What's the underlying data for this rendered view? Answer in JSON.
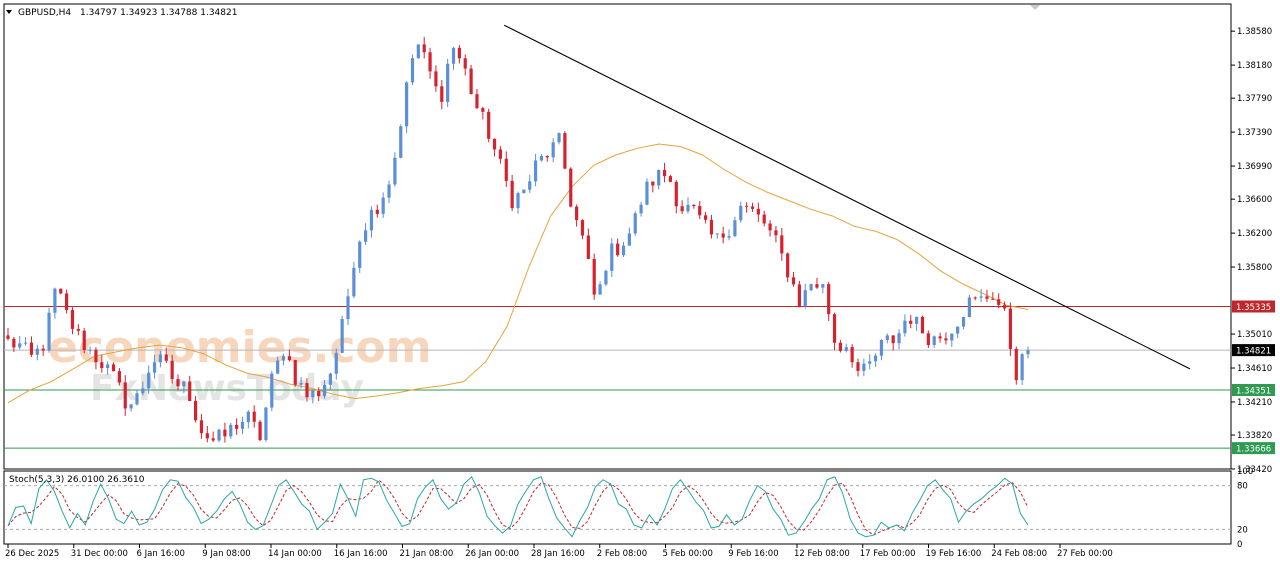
{
  "header": {
    "symbol": "GBPUSD,H4",
    "ohlc": "1.34797 1.34923 1.34788 1.34821"
  },
  "colors": {
    "bull": "#5b8fd6",
    "bear": "#d6222e",
    "ma": "#e8a33a",
    "trendline": "#000000",
    "resistance": "#c0272d",
    "support": "#2e9a52",
    "stoch_main": "#2aa6a8",
    "stoch_signal": "#c0272d",
    "watermark": "#f3c9a8"
  },
  "watermark": {
    "line1": "economies.com",
    "line2": "FxNewsToday"
  },
  "chart_data": [
    {
      "type": "candlestick",
      "title": "GBPUSD,H4",
      "ylim": [
        1.3342,
        1.389
      ],
      "yticks": [
        "1.38580",
        "1.38180",
        "1.37790",
        "1.37390",
        "1.36990",
        "1.36600",
        "1.36200",
        "1.35800",
        "1.35010",
        "1.34610",
        "1.34210",
        "1.33820",
        "1.33420"
      ],
      "xlabels": [
        "26 Dec 2025",
        "31 Dec 00:00",
        "6 Jan 16:00",
        "9 Jan 08:00",
        "14 Jan 00:00",
        "16 Jan 16:00",
        "21 Jan 08:00",
        "26 Jan 00:00",
        "28 Jan 16:00",
        "2 Feb 08:00",
        "5 Feb 00:00",
        "9 Feb 16:00",
        "12 Feb 08:00",
        "17 Feb 00:00",
        "19 Feb 16:00",
        "24 Feb 08:00",
        "27 Feb 00:00"
      ],
      "candles_count": 175,
      "anchor_prices": [
        1.3492,
        1.3487,
        1.3472,
        1.349,
        1.3556,
        1.352,
        1.3495,
        1.3478,
        1.3465,
        1.3445,
        1.3415,
        1.343,
        1.3472,
        1.3466,
        1.3442,
        1.3436,
        1.339,
        1.3375,
        1.338,
        1.3395,
        1.3402,
        1.338,
        1.3448,
        1.3485,
        1.3448,
        1.3427,
        1.3434,
        1.346,
        1.3518,
        1.3605,
        1.3638,
        1.3658,
        1.369,
        1.3775,
        1.3848,
        1.3815,
        1.3775,
        1.3843,
        1.3815,
        1.377,
        1.374,
        1.37,
        1.366,
        1.3668,
        1.37,
        1.3715,
        1.3728,
        1.365,
        1.3608,
        1.3535,
        1.3595,
        1.3605,
        1.3625,
        1.3668,
        1.3687,
        1.369,
        1.365,
        1.3648,
        1.3627,
        1.361,
        1.3625,
        1.3652,
        1.3645,
        1.3632,
        1.3608,
        1.3575,
        1.3538,
        1.3563,
        1.3555,
        1.3485,
        1.349,
        1.345,
        1.3468,
        1.3492,
        1.3495,
        1.3525,
        1.3508,
        1.3495,
        1.35,
        1.3515,
        1.3538,
        1.354,
        1.355,
        1.3525,
        1.3455,
        1.3482
      ],
      "last_price": "1.34821",
      "moving_average": {
        "color": "#e8a33a",
        "values": [
          1.342,
          1.3435,
          1.3445,
          1.346,
          1.3475,
          1.348,
          1.3485,
          1.3488,
          1.3485,
          1.3478,
          1.3465,
          1.3455,
          1.345,
          1.3442,
          1.3437,
          1.343,
          1.3425,
          1.3428,
          1.3432,
          1.3437,
          1.344,
          1.3445,
          1.3468,
          1.351,
          1.358,
          1.364,
          1.3675,
          1.37,
          1.3712,
          1.372,
          1.3725,
          1.3722,
          1.3712,
          1.3695,
          1.368,
          1.3668,
          1.3658,
          1.3648,
          1.364,
          1.3628,
          1.3622,
          1.3612,
          1.3595,
          1.3575,
          1.356,
          1.3548,
          1.3535,
          1.353
        ]
      },
      "trendline": {
        "from": {
          "x": "26 Jan 00:00",
          "y": 1.3865
        },
        "to": {
          "x": "27 Feb 00:00",
          "y": 1.346
        }
      },
      "levels": [
        {
          "name": "resistance",
          "value": "1.35335",
          "color": "#c0272d"
        },
        {
          "name": "current",
          "value": "1.34821",
          "color": "#000000"
        },
        {
          "name": "support-1",
          "value": "1.34351",
          "color": "#2e9a52"
        },
        {
          "name": "support-2",
          "value": "1.33666",
          "color": "#2e9a52"
        }
      ],
      "hidden_tick": "1.35400"
    },
    {
      "type": "line",
      "title": "Stoch(5,3,3) 26.0100 26.3610",
      "ylim": [
        0,
        100
      ],
      "yticks": [
        "100",
        "80",
        "20",
        "0"
      ],
      "levels": [
        80,
        20
      ],
      "series": [
        {
          "name": "main",
          "color": "#2aa6a8",
          "values": [
            25,
            50,
            52,
            28,
            76,
            88,
            72,
            45,
            22,
            42,
            26,
            58,
            82,
            62,
            34,
            28,
            45,
            26,
            30,
            48,
            74,
            88,
            86,
            64,
            50,
            28,
            34,
            45,
            62,
            72,
            55,
            30,
            20,
            25,
            52,
            80,
            88,
            72,
            55,
            45,
            20,
            30,
            42,
            82,
            62,
            38,
            88,
            90,
            85,
            60,
            42,
            24,
            28,
            62,
            78,
            88,
            62,
            48,
            56,
            82,
            92,
            70,
            38,
            25,
            15,
            24,
            55,
            72,
            88,
            92,
            62,
            36,
            22,
            10,
            32,
            50,
            78,
            88,
            82,
            55,
            48,
            26,
            22,
            40,
            26,
            48,
            76,
            88,
            74,
            58,
            46,
            22,
            24,
            40,
            26,
            34,
            60,
            80,
            72,
            48,
            34,
            12,
            15,
            30,
            48,
            62,
            88,
            92,
            70,
            34,
            15,
            10,
            12,
            30,
            22,
            26,
            18,
            42,
            60,
            80,
            88,
            74,
            62,
            30,
            45,
            55,
            62,
            72,
            80,
            90,
            82,
            42,
            26
          ]
        }
      ]
    }
  ]
}
